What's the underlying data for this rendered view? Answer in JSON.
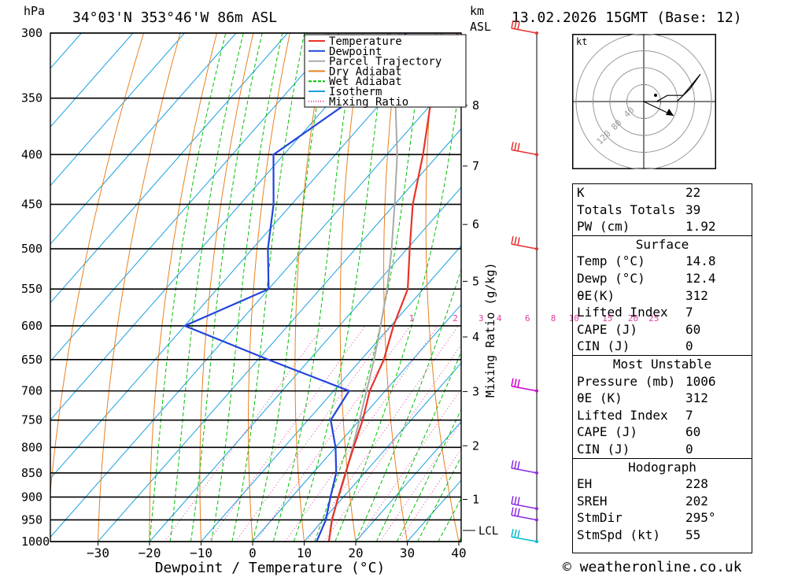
{
  "header": {
    "units_left": "hPa",
    "location": "34°03'N  353°46'W  86m  ASL",
    "units_km": "km",
    "units_asl": "ASL",
    "datetime": "13.02.2026  15GMT  (Base: 12)"
  },
  "credit": "© weatheronline.co.uk",
  "chart_data": {
    "type": "line",
    "title": "34°03'N 353°46'W 86m ASL",
    "xlabel": "Dewpoint / Temperature (°C)",
    "ylabel": "hPa",
    "xlim": [
      -40,
      40
    ],
    "ylim": [
      1000,
      300
    ],
    "pressure_levels": [
      1000,
      950,
      900,
      850,
      800,
      750,
      700,
      650,
      600,
      550,
      500,
      450,
      400,
      350,
      300
    ],
    "pressure_labels": [
      "1000",
      "950",
      "900",
      "850",
      "800",
      "750",
      "700",
      "650",
      "600",
      "550",
      "500",
      "450",
      "400",
      "350",
      "300"
    ],
    "x_ticks": [
      -30,
      -20,
      -10,
      0,
      10,
      20,
      30,
      40
    ],
    "x_tick_labels": [
      "−30",
      "−20",
      "−10",
      "0",
      "10",
      "20",
      "30",
      "40"
    ],
    "km_ticks": [
      {
        "km": "1",
        "p": 905
      },
      {
        "km": "2",
        "p": 797
      },
      {
        "km": "3",
        "p": 701
      },
      {
        "km": "4",
        "p": 616
      },
      {
        "km": "5",
        "p": 540
      },
      {
        "km": "6",
        "p": 472
      },
      {
        "km": "7",
        "p": 411
      },
      {
        "km": "8",
        "p": 356
      }
    ],
    "lcl_label": "LCL",
    "lcl_pressure": 965,
    "mixing_ratio_title": "Mixing Ratio (g/kg)",
    "mixing_ratio_labels": [
      "1",
      "2",
      "3",
      "4",
      "6",
      "8",
      "10",
      "15",
      "20",
      "25"
    ],
    "mixing_ratio_label_x_deg": [
      -6,
      2.5,
      7.5,
      11,
      16.5,
      21.5,
      25.5,
      32,
      37,
      41
    ],
    "legend": [
      {
        "name": "Temperature",
        "color": "#e8332a"
      },
      {
        "name": "Dewpoint",
        "color": "#2244dd"
      },
      {
        "name": "Parcel Trajectory",
        "color": "#aaaaaa"
      },
      {
        "name": "Dry Adiabat",
        "color": "#e88020"
      },
      {
        "name": "Wet Adiabat",
        "color": "#00c000"
      },
      {
        "name": "Isotherm",
        "color": "#1aa0e0"
      },
      {
        "name": "Mixing Ratio",
        "color": "#e040a0"
      }
    ],
    "series": [
      {
        "name": "Temperature",
        "p": [
          1000,
          950,
          900,
          850,
          800,
          750,
          700,
          650,
          600,
          550,
          500,
          450,
          400,
          350,
          300
        ],
        "t": [
          14.8,
          11.7,
          9.0,
          6.3,
          3.5,
          0.6,
          -3.0,
          -5.6,
          -9.5,
          -13.0,
          -19.5,
          -26.5,
          -33.0,
          -41.0,
          -47.0
        ]
      },
      {
        "name": "Dewpoint",
        "p": [
          1000,
          950,
          900,
          850,
          800,
          750,
          700,
          650,
          600,
          550,
          500,
          450,
          400,
          350,
          300
        ],
        "t": [
          12.4,
          10.5,
          7.5,
          4.5,
          0.0,
          -5.6,
          -7.0,
          -28.0,
          -50.0,
          -40.0,
          -47.0,
          -53.5,
          -62.0,
          -56.0,
          -57.0
        ]
      },
      {
        "name": "Parcel Trajectory",
        "p": [
          1000,
          950,
          900,
          850,
          800,
          750,
          700,
          650,
          600,
          550,
          500,
          450,
          400,
          350,
          300
        ],
        "t": [
          14.8,
          11.6,
          9.1,
          6.4,
          3.3,
          0.0,
          -3.6,
          -7.5,
          -12.0,
          -17.0,
          -23.0,
          -30.0,
          -38.0,
          -48.0,
          -58.0
        ]
      }
    ],
    "wind_barbs": [
      {
        "p": 1000,
        "color": "#00bcd4"
      },
      {
        "p": 950,
        "color": "#8a2be2"
      },
      {
        "p": 925,
        "color": "#8a2be2"
      },
      {
        "p": 850,
        "color": "#8a2be2"
      },
      {
        "p": 700,
        "color": "#cc00cc"
      },
      {
        "p": 500,
        "color": "#e83030"
      },
      {
        "p": 400,
        "color": "#e83030"
      },
      {
        "p": 300,
        "color": "#e83030"
      }
    ]
  },
  "hodograph": {
    "unit": "kt",
    "ring_labels": [
      "40",
      "80",
      "120"
    ],
    "trace": [
      [
        0,
        0
      ],
      [
        27,
        0
      ],
      [
        50,
        -13
      ],
      [
        83,
        -13
      ],
      [
        120,
        -58
      ],
      [
        98,
        -27
      ],
      [
        70,
        0
      ],
      [
        15,
        0
      ]
    ]
  },
  "indices": {
    "top": [
      {
        "label": "K",
        "value": "22"
      },
      {
        "label": "Totals Totals",
        "value": "39"
      },
      {
        "label": "PW (cm)",
        "value": "1.92"
      }
    ],
    "surface": {
      "title": "Surface",
      "rows": [
        {
          "label": "Temp (°C)",
          "value": "14.8"
        },
        {
          "label": "Dewp (°C)",
          "value": "12.4"
        },
        {
          "label": "θE(K)",
          "value": "312"
        },
        {
          "label": "Lifted Index",
          "value": "7"
        },
        {
          "label": "CAPE (J)",
          "value": "60"
        },
        {
          "label": "CIN (J)",
          "value": "0"
        }
      ]
    },
    "most_unstable": {
      "title": "Most Unstable",
      "rows": [
        {
          "label": "Pressure (mb)",
          "value": "1006"
        },
        {
          "label": "θE (K)",
          "value": "312"
        },
        {
          "label": "Lifted Index",
          "value": "7"
        },
        {
          "label": "CAPE (J)",
          "value": "60"
        },
        {
          "label": "CIN (J)",
          "value": "0"
        }
      ]
    },
    "hodograph": {
      "title": "Hodograph",
      "rows": [
        {
          "label": "EH",
          "value": "228"
        },
        {
          "label": "SREH",
          "value": "202"
        },
        {
          "label": "StmDir",
          "value": "295°"
        },
        {
          "label": "StmSpd (kt)",
          "value": "55"
        }
      ]
    }
  }
}
